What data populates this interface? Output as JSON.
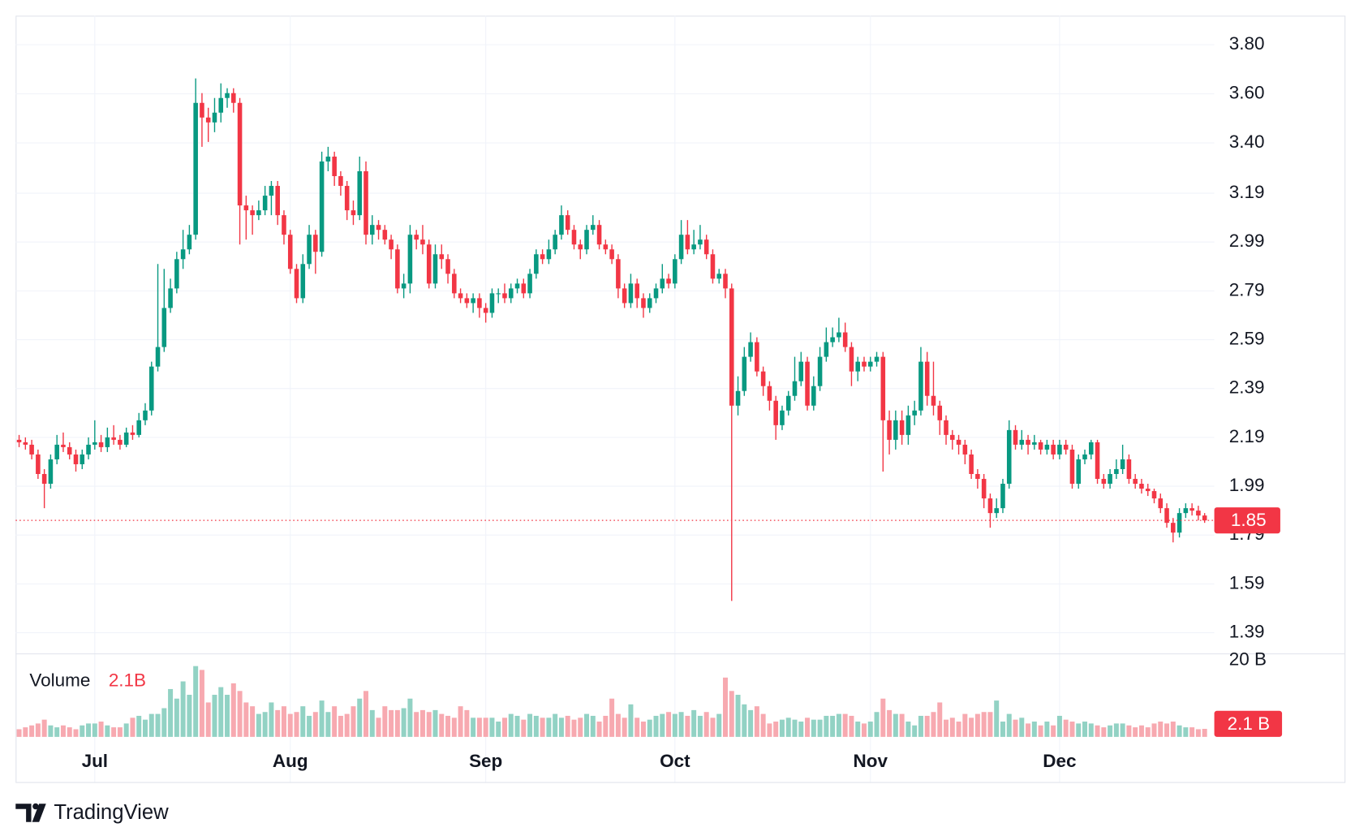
{
  "chart_data": {
    "type": "candlestick",
    "categories": [
      null,
      null,
      null,
      null,
      null,
      null,
      null,
      null,
      null,
      null,
      null,
      null,
      "Jul",
      null,
      null,
      null,
      null,
      null,
      null,
      null,
      null,
      null,
      null,
      null,
      null,
      null,
      null,
      null,
      null,
      null,
      null,
      null,
      null,
      null,
      null,
      null,
      null,
      null,
      null,
      null,
      null,
      null,
      null,
      "Aug",
      null,
      null,
      null,
      null,
      null,
      null,
      null,
      null,
      null,
      null,
      null,
      null,
      null,
      null,
      null,
      null,
      null,
      null,
      null,
      null,
      null,
      null,
      null,
      null,
      null,
      null,
      null,
      null,
      null,
      null,
      "Sep",
      null,
      null,
      null,
      null,
      null,
      null,
      null,
      null,
      null,
      null,
      null,
      null,
      null,
      null,
      null,
      null,
      null,
      null,
      null,
      null,
      null,
      null,
      null,
      null,
      null,
      null,
      null,
      null,
      null,
      "Oct",
      null,
      null,
      null,
      null,
      null,
      null,
      null,
      null,
      null,
      null,
      null,
      null,
      null,
      null,
      null,
      null,
      null,
      null,
      null,
      null,
      null,
      null,
      null,
      null,
      null,
      null,
      null,
      null,
      null,
      null,
      "Nov",
      null,
      null,
      null,
      null,
      null,
      null,
      null,
      null,
      null,
      null,
      null,
      null,
      null,
      null,
      null,
      null,
      null,
      null,
      null,
      null,
      null,
      null,
      null,
      null,
      null,
      null,
      null,
      null,
      null,
      "Dec",
      null,
      null,
      null,
      null,
      null,
      null,
      null,
      null,
      null,
      null,
      null,
      null,
      null,
      null,
      null,
      null,
      null,
      null,
      null,
      null,
      null,
      null,
      null
    ],
    "open": [
      2.18,
      2.17,
      2.16,
      2.12,
      2.04,
      2.0,
      2.1,
      2.16,
      2.15,
      2.12,
      2.08,
      2.12,
      2.16,
      2.17,
      2.15,
      2.19,
      2.18,
      2.16,
      2.21,
      2.2,
      2.26,
      2.3,
      2.48,
      2.56,
      2.72,
      2.8,
      2.92,
      2.96,
      3.02,
      3.56,
      3.5,
      3.48,
      3.52,
      3.58,
      3.6,
      3.56,
      3.14,
      3.12,
      3.1,
      3.12,
      3.18,
      3.22,
      3.1,
      3.02,
      2.88,
      2.76,
      2.9,
      3.02,
      2.95,
      3.32,
      3.34,
      3.26,
      3.22,
      3.12,
      3.1,
      3.28,
      3.02,
      3.06,
      3.04,
      3.0,
      2.96,
      2.8,
      2.82,
      3.02,
      3.0,
      2.98,
      2.82,
      2.94,
      2.92,
      2.86,
      2.78,
      2.76,
      2.74,
      2.76,
      2.72,
      2.7,
      2.78,
      2.78,
      2.76,
      2.8,
      2.82,
      2.78,
      2.86,
      2.94,
      2.92,
      2.96,
      3.02,
      3.1,
      3.04,
      2.98,
      2.96,
      3.04,
      3.06,
      2.98,
      2.96,
      2.92,
      2.8,
      2.74,
      2.82,
      2.76,
      2.72,
      2.76,
      2.8,
      2.84,
      2.82,
      2.92,
      3.02,
      2.96,
      2.98,
      3.0,
      2.94,
      2.84,
      2.86,
      2.8,
      2.32,
      2.38,
      2.52,
      2.58,
      2.46,
      2.4,
      2.34,
      2.24,
      2.3,
      2.36,
      2.42,
      2.5,
      2.32,
      2.4,
      2.52,
      2.58,
      2.6,
      2.62,
      2.56,
      2.46,
      2.5,
      2.48,
      2.5,
      2.52,
      2.26,
      2.18,
      2.26,
      2.2,
      2.28,
      2.3,
      2.5,
      2.36,
      2.32,
      2.26,
      2.2,
      2.18,
      2.16,
      2.12,
      2.04,
      2.02,
      1.94,
      1.88,
      1.9,
      2.0,
      2.22,
      2.16,
      2.18,
      2.16,
      2.17,
      2.14,
      2.16,
      2.12,
      2.16,
      2.14,
      2.0,
      2.1,
      2.12,
      2.17,
      2.02,
      2.0,
      2.04,
      2.06,
      2.1,
      2.02,
      2.0,
      1.98,
      1.97,
      1.94,
      1.9,
      1.84,
      1.8,
      1.88,
      1.9,
      1.89,
      1.87
    ],
    "high": [
      2.2,
      2.19,
      2.18,
      2.14,
      2.06,
      2.12,
      2.2,
      2.21,
      2.17,
      2.14,
      2.14,
      2.19,
      2.26,
      2.2,
      2.23,
      2.24,
      2.2,
      2.23,
      2.24,
      2.29,
      2.33,
      2.5,
      2.9,
      2.88,
      2.84,
      2.95,
      3.04,
      3.06,
      3.66,
      3.6,
      3.54,
      3.58,
      3.64,
      3.62,
      3.62,
      3.58,
      3.18,
      3.14,
      3.16,
      3.22,
      3.24,
      3.24,
      3.12,
      3.04,
      2.9,
      2.94,
      3.06,
      3.04,
      3.36,
      3.38,
      3.36,
      3.28,
      3.24,
      3.16,
      3.34,
      3.32,
      3.1,
      3.08,
      3.06,
      3.02,
      2.98,
      2.86,
      3.06,
      3.04,
      3.06,
      3.0,
      2.98,
      2.98,
      2.94,
      2.88,
      2.8,
      2.78,
      2.78,
      2.78,
      2.74,
      2.8,
      2.8,
      2.82,
      2.82,
      2.84,
      2.84,
      2.88,
      2.96,
      2.96,
      3.0,
      3.04,
      3.14,
      3.12,
      3.06,
      3.0,
      3.06,
      3.1,
      3.08,
      3.0,
      2.98,
      2.94,
      2.82,
      2.86,
      2.84,
      2.78,
      2.78,
      2.82,
      2.9,
      2.86,
      2.94,
      3.08,
      3.08,
      3.04,
      3.06,
      3.02,
      2.96,
      2.88,
      2.88,
      2.82,
      2.44,
      2.56,
      2.62,
      2.6,
      2.48,
      2.42,
      2.36,
      2.32,
      2.38,
      2.52,
      2.54,
      2.52,
      2.44,
      2.56,
      2.64,
      2.64,
      2.68,
      2.66,
      2.58,
      2.52,
      2.52,
      2.52,
      2.54,
      2.54,
      2.3,
      2.3,
      2.3,
      2.32,
      2.34,
      2.56,
      2.54,
      2.5,
      2.34,
      2.28,
      2.22,
      2.2,
      2.18,
      2.14,
      2.06,
      2.04,
      1.96,
      1.94,
      2.02,
      2.26,
      2.24,
      2.22,
      2.2,
      2.2,
      2.18,
      2.18,
      2.18,
      2.18,
      2.18,
      2.16,
      2.12,
      2.14,
      2.18,
      2.18,
      2.04,
      2.06,
      2.1,
      2.16,
      2.12,
      2.04,
      2.02,
      2.0,
      1.98,
      1.96,
      1.92,
      1.86,
      1.9,
      1.92,
      1.92,
      1.91,
      1.88
    ],
    "low": [
      2.15,
      2.14,
      2.1,
      2.02,
      1.9,
      1.98,
      2.08,
      2.13,
      2.1,
      2.05,
      2.06,
      2.1,
      2.14,
      2.13,
      2.13,
      2.16,
      2.14,
      2.15,
      2.18,
      2.19,
      2.24,
      2.28,
      2.46,
      2.54,
      2.7,
      2.78,
      2.88,
      2.94,
      3.0,
      3.38,
      3.4,
      3.44,
      3.48,
      3.54,
      3.52,
      2.98,
      3.0,
      3.02,
      3.08,
      3.1,
      3.1,
      3.06,
      2.98,
      2.86,
      2.74,
      2.74,
      2.88,
      2.86,
      2.93,
      3.28,
      3.22,
      3.18,
      3.08,
      3.06,
      3.08,
      2.98,
      2.98,
      3.0,
      2.98,
      2.92,
      2.78,
      2.76,
      2.78,
      2.96,
      2.94,
      2.8,
      2.8,
      2.88,
      2.82,
      2.76,
      2.74,
      2.72,
      2.7,
      2.68,
      2.66,
      2.68,
      2.74,
      2.74,
      2.74,
      2.78,
      2.76,
      2.76,
      2.84,
      2.9,
      2.9,
      2.94,
      3.0,
      3.02,
      2.96,
      2.92,
      2.94,
      3.02,
      2.96,
      2.94,
      2.9,
      2.76,
      2.72,
      2.72,
      2.72,
      2.68,
      2.7,
      2.74,
      2.78,
      2.8,
      2.8,
      2.9,
      2.94,
      2.94,
      2.96,
      2.92,
      2.82,
      2.82,
      2.76,
      1.52,
      2.28,
      2.36,
      2.5,
      2.44,
      2.36,
      2.3,
      2.18,
      2.22,
      2.28,
      2.34,
      2.4,
      2.3,
      2.3,
      2.38,
      2.5,
      2.56,
      2.58,
      2.54,
      2.4,
      2.42,
      2.46,
      2.46,
      2.48,
      2.05,
      2.12,
      2.14,
      2.16,
      2.16,
      2.24,
      2.28,
      2.32,
      2.28,
      2.2,
      2.16,
      2.14,
      2.12,
      2.08,
      2.02,
      1.98,
      1.9,
      1.82,
      1.86,
      1.88,
      1.98,
      2.14,
      2.14,
      2.12,
      2.14,
      2.12,
      2.12,
      2.1,
      2.1,
      2.12,
      1.98,
      1.98,
      2.08,
      2.1,
      2.0,
      1.98,
      1.98,
      2.02,
      2.04,
      2.0,
      1.98,
      1.96,
      1.95,
      1.92,
      1.88,
      1.82,
      1.76,
      1.78,
      1.86,
      1.87,
      1.85,
      1.84
    ],
    "close": [
      2.17,
      2.16,
      2.12,
      2.04,
      2.0,
      2.1,
      2.16,
      2.15,
      2.12,
      2.08,
      2.12,
      2.16,
      2.17,
      2.15,
      2.19,
      2.18,
      2.16,
      2.21,
      2.2,
      2.26,
      2.3,
      2.48,
      2.56,
      2.72,
      2.8,
      2.92,
      2.96,
      3.02,
      3.56,
      3.5,
      3.48,
      3.52,
      3.58,
      3.6,
      3.56,
      3.14,
      3.12,
      3.1,
      3.12,
      3.18,
      3.22,
      3.1,
      3.02,
      2.88,
      2.76,
      2.9,
      3.02,
      2.95,
      3.32,
      3.34,
      3.26,
      3.22,
      3.12,
      3.1,
      3.28,
      3.02,
      3.06,
      3.04,
      3.0,
      2.96,
      2.8,
      2.82,
      3.02,
      3.0,
      2.98,
      2.82,
      2.94,
      2.92,
      2.86,
      2.78,
      2.76,
      2.74,
      2.76,
      2.72,
      2.7,
      2.78,
      2.78,
      2.76,
      2.8,
      2.82,
      2.78,
      2.86,
      2.94,
      2.92,
      2.96,
      3.02,
      3.1,
      3.04,
      2.98,
      2.96,
      3.04,
      3.06,
      2.98,
      2.96,
      2.92,
      2.8,
      2.74,
      2.82,
      2.76,
      2.72,
      2.76,
      2.8,
      2.84,
      2.82,
      2.92,
      3.02,
      2.96,
      2.98,
      3.0,
      2.94,
      2.84,
      2.86,
      2.8,
      2.32,
      2.38,
      2.52,
      2.58,
      2.46,
      2.4,
      2.34,
      2.24,
      2.3,
      2.36,
      2.42,
      2.5,
      2.32,
      2.4,
      2.52,
      2.58,
      2.6,
      2.62,
      2.56,
      2.46,
      2.5,
      2.48,
      2.5,
      2.52,
      2.26,
      2.18,
      2.26,
      2.2,
      2.28,
      2.3,
      2.5,
      2.36,
      2.32,
      2.26,
      2.2,
      2.18,
      2.16,
      2.12,
      2.04,
      2.02,
      1.94,
      1.88,
      1.9,
      2.0,
      2.22,
      2.16,
      2.18,
      2.16,
      2.17,
      2.14,
      2.16,
      2.12,
      2.16,
      2.14,
      2.0,
      2.1,
      2.12,
      2.17,
      2.02,
      2.0,
      2.04,
      2.06,
      2.1,
      2.02,
      2.0,
      1.98,
      1.97,
      1.94,
      1.9,
      1.84,
      1.8,
      1.88,
      1.9,
      1.89,
      1.87,
      1.85
    ],
    "volume": [
      2,
      2.5,
      3,
      3.5,
      4.5,
      3,
      2.5,
      3,
      2.5,
      2,
      3,
      3.5,
      3.5,
      4,
      3,
      2.5,
      2.5,
      3.5,
      5,
      5.5,
      4.5,
      6,
      6,
      7.5,
      12.5,
      10,
      14.5,
      11,
      18.5,
      17.5,
      9,
      11,
      13,
      11,
      14,
      12,
      9,
      8,
      6,
      6.5,
      9,
      7,
      8,
      6,
      6.5,
      8,
      5.5,
      6.5,
      9.5,
      6.5,
      8,
      5.5,
      6,
      8,
      10,
      12,
      7,
      5,
      8,
      7,
      7,
      7.5,
      10,
      6.5,
      7,
      6.5,
      7,
      6,
      5.5,
      5,
      8,
      7,
      5,
      5,
      5,
      5,
      4,
      5,
      6,
      5.5,
      4.5,
      6,
      5.5,
      5,
      5,
      6,
      5,
      5.5,
      4.5,
      5,
      6,
      5.5,
      4,
      5.5,
      10,
      6,
      5,
      8.5,
      5,
      4,
      4.5,
      5.5,
      6,
      6.5,
      6,
      6.5,
      5.5,
      7,
      5.5,
      6.5,
      5,
      6,
      15.5,
      12,
      11,
      8.5,
      7,
      8,
      6,
      3.5,
      4,
      4.5,
      5,
      4.5,
      4,
      5,
      4.5,
      4.5,
      5.5,
      5.5,
      6,
      6,
      5.5,
      4,
      3.5,
      4,
      6.5,
      10,
      7,
      6,
      6,
      4,
      3,
      5.5,
      5.5,
      6.5,
      9,
      4.5,
      5,
      4,
      6,
      5,
      6,
      6.5,
      6.5,
      9.5,
      4,
      6,
      4.5,
      5,
      3.5,
      4,
      3,
      4,
      3,
      5.5,
      4.5,
      4,
      3.5,
      4,
      3.5,
      3,
      2.5,
      3,
      3.5,
      3.5,
      3,
      2.5,
      3,
      2.5,
      3.5,
      4,
      3.5,
      4,
      3,
      2.5,
      2.5,
      2,
      2.1
    ],
    "up_color": "#089981",
    "down_color": "#f23645",
    "volume_up_color": "#92d2c4",
    "volume_down_color": "#f7a9b0",
    "ylim": [
      1.305,
      3.917
    ],
    "yticks": [
      1.39,
      1.59,
      1.79,
      1.99,
      2.19,
      2.39,
      2.59,
      2.79,
      2.99,
      3.19,
      {
        "value": 3.396,
        "label": "3.40"
      },
      {
        "value": 3.597,
        "label": "3.60"
      },
      {
        "value": 3.798,
        "label": "3.80"
      }
    ],
    "volume_ylim": [
      0,
      21.8
    ],
    "volume_yticks": [
      {
        "value": 20,
        "label": "20 B"
      }
    ],
    "grid": true,
    "last_price": 1.85,
    "volume_legend": {
      "name": "Volume",
      "value": 2.1,
      "label": "2.1B"
    },
    "volume_tag": {
      "value": 2.1,
      "label": "2.1 B"
    },
    "branding": "TradingView"
  }
}
